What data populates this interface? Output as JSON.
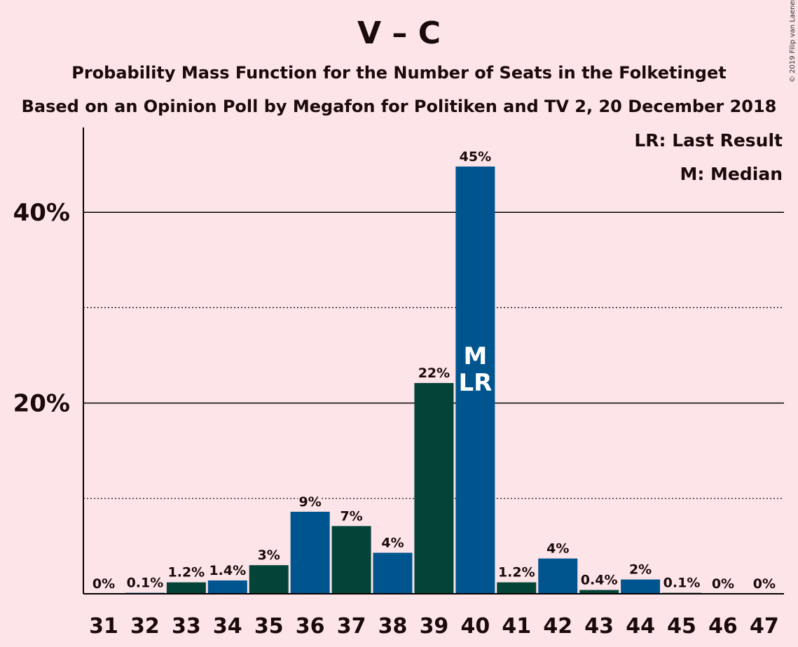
{
  "title": "V – C",
  "subtitle1": "Probability Mass Function for the Number of Seats in the Folketinget",
  "subtitle2": "Based on an Opinion Poll by Megafon for Politiken and TV 2, 20 December 2018",
  "copyright": "© 2019 Filip van Laenen",
  "colors": {
    "background": "#FDE4E8",
    "blue": "#00558F",
    "green": "#044438"
  },
  "chart_data": {
    "type": "bar",
    "categories": [
      "31",
      "32",
      "33",
      "34",
      "35",
      "36",
      "37",
      "38",
      "39",
      "40",
      "41",
      "42",
      "43",
      "44",
      "45",
      "46",
      "47"
    ],
    "values": [
      0,
      0.1,
      1.2,
      1.4,
      3,
      8.6,
      7.1,
      4.3,
      22.1,
      44.8,
      1.2,
      3.7,
      0.4,
      1.5,
      0.1,
      0,
      0
    ],
    "value_labels": [
      "0%",
      "0.1%",
      "1.2%",
      "1.4%",
      "3%",
      "9%",
      "7%",
      "4%",
      "22%",
      "45%",
      "1.2%",
      "4%",
      "0.4%",
      "2%",
      "0.1%",
      "0%",
      "0%"
    ],
    "bar_colors": [
      "blue",
      "blue",
      "green",
      "blue",
      "green",
      "blue",
      "green",
      "blue",
      "green",
      "blue",
      "green",
      "blue",
      "green",
      "blue",
      "green",
      "blue",
      "green"
    ],
    "ylim": [
      0,
      49
    ],
    "yticks": [
      20,
      40
    ],
    "ytick_labels": [
      "20%",
      "40%"
    ],
    "minor_gridlines": [
      10,
      30
    ],
    "median_category": "40",
    "last_result_category": "40",
    "median_marker": "M",
    "last_result_marker": "LR",
    "legend": [
      "LR: Last Result",
      "M: Median"
    ],
    "legend_position": "top-right"
  }
}
